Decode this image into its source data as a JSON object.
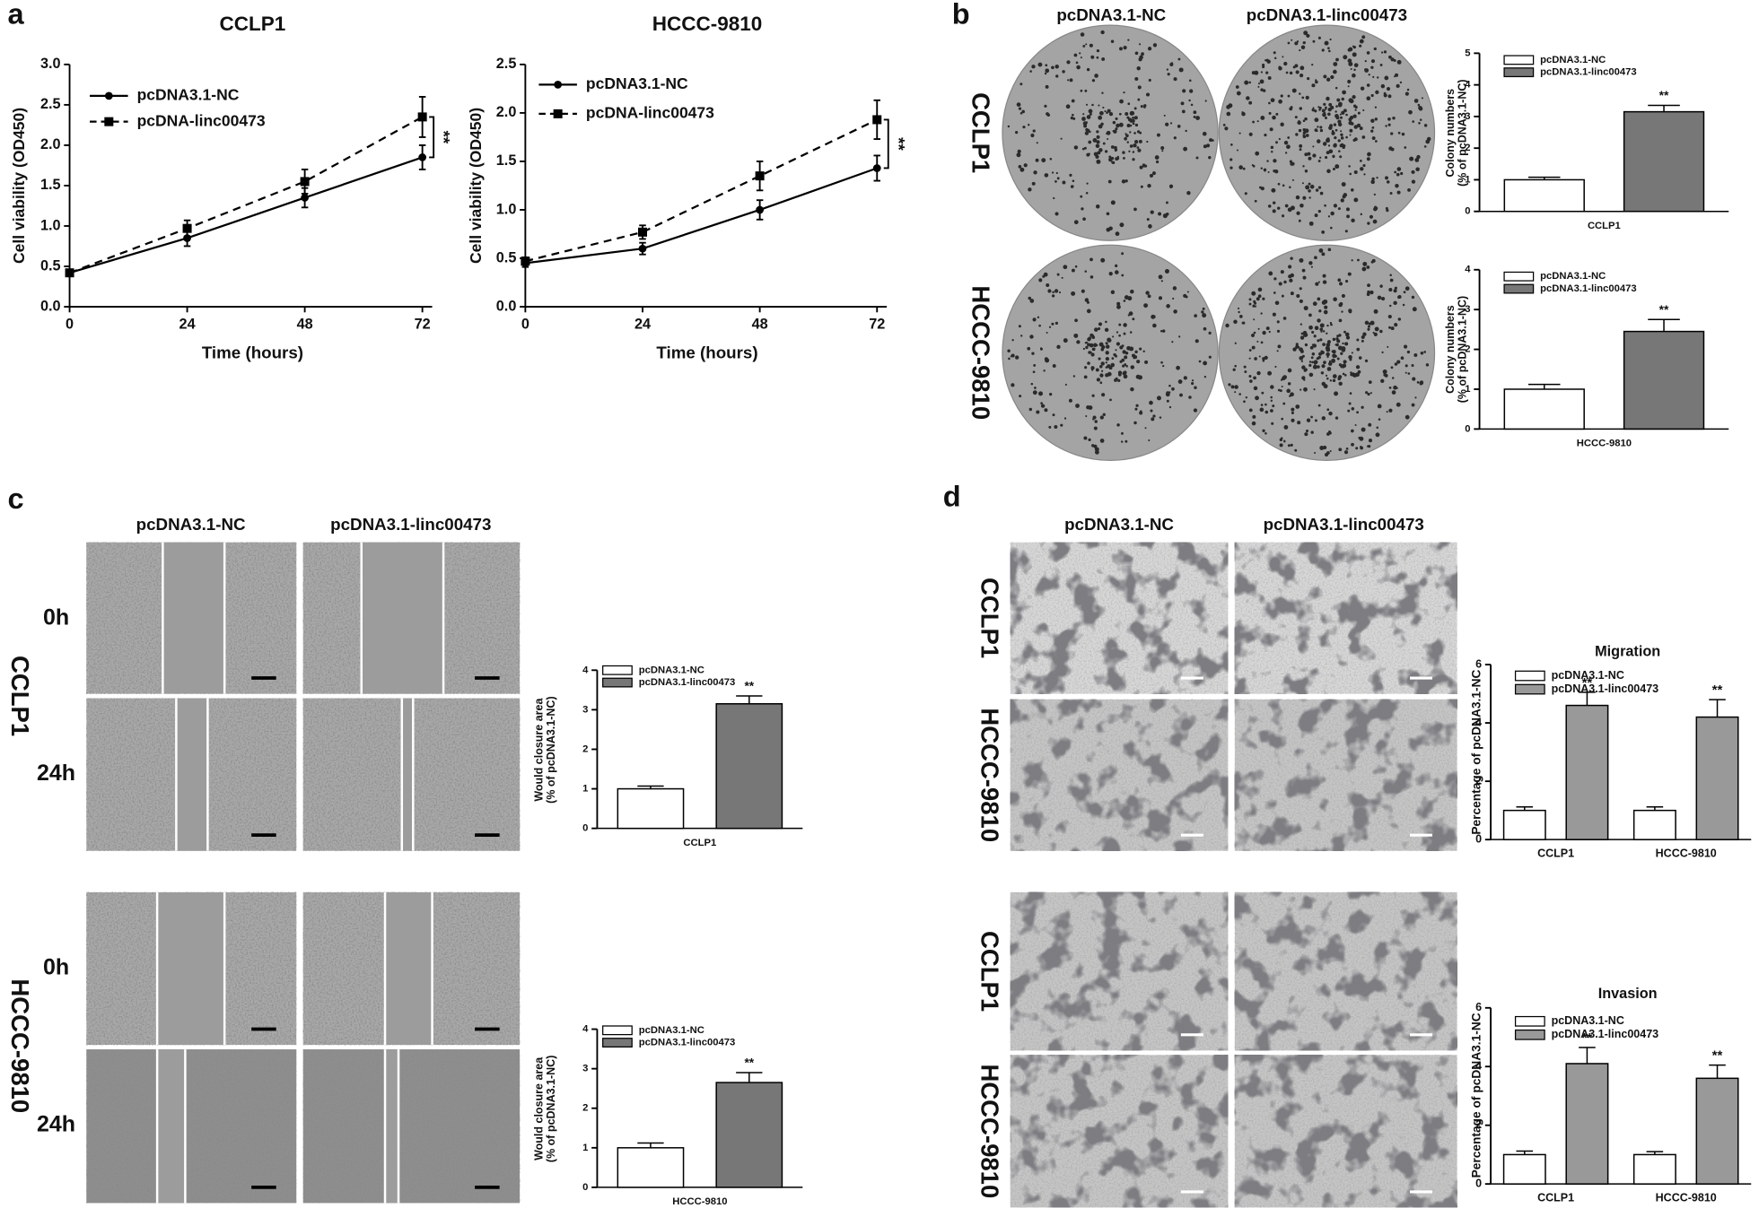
{
  "panels": {
    "a": {
      "label": "a"
    },
    "b": {
      "label": "b",
      "columns": [
        "pcDNA3.1-NC",
        "pcDNA3.1-linc00473"
      ],
      "rows": [
        "CCLP1",
        "HCCC-9810"
      ]
    },
    "c": {
      "label": "c",
      "columns": [
        "pcDNA3.1-NC",
        "pcDNA3.1-linc00473"
      ],
      "cell_lines": [
        "CCLP1",
        "HCCC-9810"
      ],
      "times": [
        "0h",
        "24h",
        "0h",
        "24h"
      ]
    },
    "d": {
      "label": "d",
      "columns": [
        "pcDNA3.1-NC",
        "pcDNA3.1-linc00473"
      ],
      "rows": [
        "CCLP1",
        "HCCC-9810",
        "CCLP1",
        "HCCC-9810"
      ]
    }
  },
  "chart_data": [
    {
      "type": "line",
      "title": "CCLP1",
      "xlabel": "Time (hours)",
      "ylabel": "Cell viability (OD450)",
      "x": [
        0,
        24,
        48,
        72
      ],
      "xlim": [
        0,
        74
      ],
      "xticks": [
        0,
        24,
        48,
        72
      ],
      "ylim": [
        0,
        3
      ],
      "yticks": [
        {
          "value": 0,
          "label": "0.0"
        },
        0.5,
        {
          "value": 1,
          "label": "1.0"
        },
        1.5,
        {
          "value": 2,
          "label": "2.0"
        },
        2.5,
        {
          "value": 3,
          "label": "3.0"
        }
      ],
      "series": [
        {
          "name": "pcDNA3.1-NC",
          "color": "#000000",
          "dash": "solid",
          "marker": "circle",
          "values": [
            0.42,
            0.85,
            1.35,
            1.85
          ],
          "errors": [
            0.03,
            0.1,
            0.12,
            0.15
          ]
        },
        {
          "name": "pcDNA-linc00473",
          "color": "#000000",
          "dash": "dashed",
          "marker": "square",
          "values": [
            0.42,
            0.97,
            1.55,
            2.35
          ],
          "errors": [
            0.03,
            0.1,
            0.15,
            0.25
          ]
        }
      ],
      "annotation": "**"
    },
    {
      "type": "line",
      "title": "HCCC-9810",
      "xlabel": "Time (hours)",
      "ylabel": "Cell viability (OD450)",
      "x": [
        0,
        24,
        48,
        72
      ],
      "xlim": [
        0,
        74
      ],
      "xticks": [
        0,
        24,
        48,
        72
      ],
      "ylim": [
        0,
        2.5
      ],
      "yticks": [
        {
          "value": 0,
          "label": "0.0"
        },
        0.5,
        {
          "value": 1,
          "label": "1.0"
        },
        1.5,
        {
          "value": 2,
          "label": "2.0"
        },
        2.5
      ],
      "series": [
        {
          "name": "pcDNA3.1-NC",
          "color": "#000000",
          "dash": "solid",
          "marker": "circle",
          "values": [
            0.45,
            0.6,
            1.0,
            1.43
          ],
          "errors": [
            0.04,
            0.06,
            0.1,
            0.13
          ]
        },
        {
          "name": "pcDNA-linc00473",
          "color": "#000000",
          "dash": "dashed",
          "marker": "square",
          "values": [
            0.47,
            0.77,
            1.35,
            1.93
          ],
          "errors": [
            0.04,
            0.07,
            0.15,
            0.2
          ]
        }
      ],
      "annotation": "**"
    },
    {
      "type": "bar",
      "categories": [
        "CCLP1"
      ],
      "ylabel": [
        "Colony numbers",
        "(% of pcDNA3.1-NC)"
      ],
      "ylim": [
        0,
        5
      ],
      "yticks": [
        0,
        1,
        2,
        3,
        4,
        5
      ],
      "series": [
        {
          "name": "pcDNA3.1-NC",
          "color": "#ffffff",
          "values": [
            1.0
          ],
          "errors": [
            0.08
          ]
        },
        {
          "name": "pcDNA3.1-linc00473",
          "color": "#777777",
          "values": [
            3.15
          ],
          "errors": [
            0.2
          ]
        }
      ],
      "annotations": [
        "**"
      ]
    },
    {
      "type": "bar",
      "categories": [
        "HCCC-9810"
      ],
      "ylabel": [
        "Colony numbers",
        "(% of pcDNA3.1-NC)"
      ],
      "ylim": [
        0,
        4
      ],
      "yticks": [
        0,
        1,
        2,
        3,
        4
      ],
      "series": [
        {
          "name": "pcDNA3.1-NC",
          "color": "#ffffff",
          "values": [
            1.0
          ],
          "errors": [
            0.12
          ]
        },
        {
          "name": "pcDNA3.1-linc00473",
          "color": "#777777",
          "values": [
            2.45
          ],
          "errors": [
            0.3
          ]
        }
      ],
      "annotations": [
        "**"
      ]
    },
    {
      "type": "bar",
      "categories": [
        "CCLP1"
      ],
      "ylabel": [
        "Would closure area",
        "(% of pcDNA3.1-NC)"
      ],
      "ylim": [
        0,
        4
      ],
      "yticks": [
        0,
        1,
        2,
        3,
        4
      ],
      "series": [
        {
          "name": "pcDNA3.1-NC",
          "color": "#ffffff",
          "values": [
            1.0
          ],
          "errors": [
            0.07
          ]
        },
        {
          "name": "pcDNA3.1-linc00473",
          "color": "#777777",
          "values": [
            3.15
          ],
          "errors": [
            0.2
          ]
        }
      ],
      "annotations": [
        "**"
      ]
    },
    {
      "type": "bar",
      "categories": [
        "HCCC-9810"
      ],
      "ylabel": [
        "Would closure area",
        "(% of pcDNA3.1-NC)"
      ],
      "ylim": [
        0,
        4
      ],
      "yticks": [
        0,
        1,
        2,
        3,
        4
      ],
      "series": [
        {
          "name": "pcDNA3.1-NC",
          "color": "#ffffff",
          "values": [
            1.0
          ],
          "errors": [
            0.12
          ]
        },
        {
          "name": "pcDNA3.1-linc00473",
          "color": "#777777",
          "values": [
            2.65
          ],
          "errors": [
            0.25
          ]
        }
      ],
      "annotations": [
        "**"
      ]
    },
    {
      "type": "bar",
      "title": "Migration",
      "categories": [
        "CCLP1",
        "HCCC-9810"
      ],
      "ylabel": "Percentage of pcDNA3.1-NC",
      "ylim": [
        0,
        6
      ],
      "yticks": [
        0,
        2,
        4,
        6
      ],
      "series": [
        {
          "name": "pcDNA3.1-NC",
          "color": "#ffffff",
          "values": [
            1.0,
            1.0
          ],
          "errors": [
            0.12,
            0.12
          ]
        },
        {
          "name": "pcDNA3.1-linc00473",
          "color": "#999999",
          "values": [
            4.6,
            4.2
          ],
          "errors": [
            0.45,
            0.6
          ]
        }
      ],
      "annotations": [
        "**",
        "**"
      ]
    },
    {
      "type": "bar",
      "title": "Invasion",
      "categories": [
        "CCLP1",
        "HCCC-9810"
      ],
      "ylabel": "Percentage of pcDNA3.1-NC",
      "ylim": [
        0,
        6
      ],
      "yticks": [
        0,
        2,
        4,
        6
      ],
      "series": [
        {
          "name": "pcDNA3.1-NC",
          "color": "#ffffff",
          "values": [
            1.0,
            1.0
          ],
          "errors": [
            0.12,
            0.1
          ]
        },
        {
          "name": "pcDNA3.1-linc00473",
          "color": "#999999",
          "values": [
            4.1,
            3.6
          ],
          "errors": [
            0.55,
            0.45
          ]
        }
      ],
      "annotations": [
        "**",
        "**"
      ]
    }
  ]
}
